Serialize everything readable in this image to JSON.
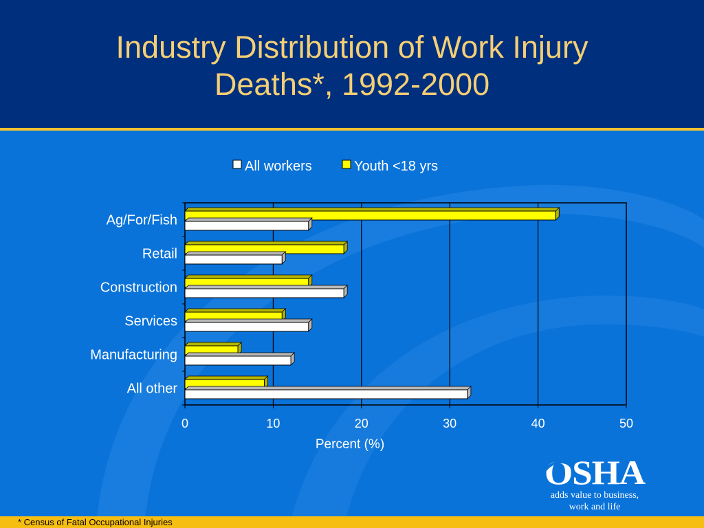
{
  "title_lines": [
    "Industry Distribution of Work Injury",
    "Deaths*, 1992-2000"
  ],
  "footnote": "* Census of Fatal Occupational Injuries",
  "logo": {
    "wordmark": "OSHA",
    "tagline_lines": [
      "adds value to business,",
      "work and life"
    ]
  },
  "colors": {
    "background": "#0a73d9",
    "header": "#002f7e",
    "title": "#f4cf74",
    "accent": "#f2c230",
    "footer": "#f7be12"
  },
  "chart_data": {
    "type": "bar",
    "orientation": "horizontal",
    "categories": [
      "Ag/For/Fish",
      "Retail",
      "Construction",
      "Services",
      "Manufacturing",
      "All other"
    ],
    "series": [
      {
        "name": "All workers",
        "color": "#ffffff",
        "values": [
          14,
          11,
          18,
          14,
          12,
          32
        ]
      },
      {
        "name": "Youth <18 yrs",
        "color": "#ffff00",
        "values": [
          42,
          18,
          14,
          11,
          6,
          9
        ]
      }
    ],
    "xlabel": "Percent (%)",
    "xlim": [
      0,
      50
    ],
    "xticks": [
      0,
      10,
      20,
      30,
      40,
      50
    ],
    "legend_position": "top",
    "grid": "vertical lines"
  }
}
